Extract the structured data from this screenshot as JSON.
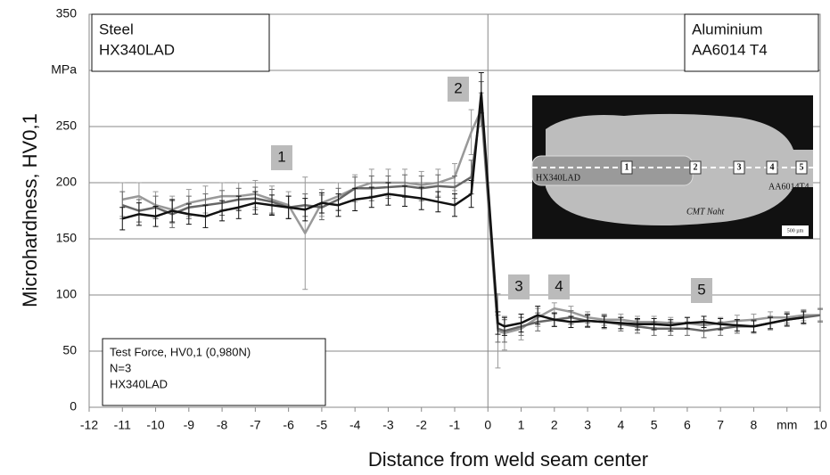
{
  "chart_data": {
    "type": "line",
    "x_label": "Distance from weld seam center",
    "y_label": "Microhardness, HV0,1",
    "xlim": [
      -12,
      10
    ],
    "ylim": [
      0,
      350
    ],
    "xticks": [
      -12,
      -11,
      -10,
      -9,
      -8,
      -7,
      -6,
      -5,
      -4,
      -3,
      -2,
      -1,
      0,
      1,
      2,
      3,
      4,
      5,
      6,
      7,
      8,
      {
        "value": 9,
        "label": "mm"
      },
      10
    ],
    "yticks": [
      0,
      50,
      100,
      150,
      200,
      250,
      {
        "value": 300,
        "label": "MPa"
      },
      350
    ],
    "grid": true,
    "x": [
      -11,
      -10.5,
      -10,
      -9.5,
      -9,
      -8.5,
      -8,
      -7.5,
      -7,
      -6.5,
      -6,
      -5.5,
      -5,
      -4.5,
      -4,
      -3.5,
      -3,
      -2.5,
      -2,
      -1.5,
      -1,
      -0.5,
      -0.2,
      0.3,
      0.5,
      1,
      1.5,
      2,
      2.5,
      3,
      3.5,
      4,
      4.5,
      5,
      5.5,
      6,
      6.5,
      7,
      7.5,
      8,
      8.5,
      9,
      9.5,
      10
    ],
    "series": [
      {
        "color": "#111111",
        "values": [
          168,
          172,
          170,
          175,
          172,
          170,
          175,
          178,
          182,
          180,
          178,
          176,
          182,
          180,
          185,
          187,
          190,
          188,
          186,
          183,
          180,
          190,
          280,
          75,
          72,
          75,
          82,
          78,
          76,
          77,
          76,
          75,
          74,
          74,
          73,
          75,
          76,
          74,
          73,
          72,
          75,
          78,
          80,
          null
        ],
        "errors": [
          10,
          10,
          9,
          10,
          9,
          10,
          9,
          10,
          10,
          9,
          10,
          10,
          9,
          10,
          10,
          9,
          10,
          9,
          10,
          9,
          10,
          12,
          18,
          10,
          8,
          8,
          8,
          6,
          5,
          5,
          5,
          5,
          5,
          5,
          5,
          5,
          5,
          5,
          5,
          5,
          5,
          5,
          5,
          null
        ]
      },
      {
        "color": "#666666",
        "values": [
          180,
          175,
          178,
          172,
          178,
          180,
          182,
          185,
          186,
          183,
          178,
          180,
          178,
          185,
          195,
          195,
          196,
          197,
          195,
          197,
          196,
          205,
          270,
          70,
          68,
          72,
          76,
          78,
          80,
          77,
          76,
          74,
          72,
          70,
          70,
          70,
          68,
          70,
          72,
          72,
          75,
          78,
          80,
          82
        ],
        "errors": [
          12,
          10,
          10,
          12,
          10,
          10,
          11,
          10,
          10,
          11,
          10,
          10,
          11,
          10,
          10,
          11,
          10,
          10,
          11,
          10,
          10,
          15,
          20,
          12,
          10,
          8,
          8,
          6,
          6,
          6,
          6,
          6,
          6,
          6,
          6,
          6,
          6,
          6,
          6,
          6,
          6,
          6,
          6,
          6
        ]
      },
      {
        "color": "#999999",
        "values": [
          185,
          188,
          180,
          176,
          182,
          185,
          188,
          188,
          190,
          185,
          180,
          155,
          182,
          188,
          195,
          200,
          200,
          200,
          198,
          200,
          205,
          245,
          265,
          68,
          66,
          70,
          80,
          88,
          85,
          80,
          78,
          78,
          76,
          76,
          75,
          75,
          73,
          75,
          77,
          78,
          80,
          80,
          82,
          82
        ],
        "errors": [
          15,
          12,
          12,
          12,
          12,
          12,
          12,
          12,
          12,
          12,
          12,
          50,
          12,
          12,
          12,
          12,
          12,
          12,
          12,
          12,
          12,
          20,
          15,
          33,
          15,
          10,
          8,
          5,
          5,
          5,
          5,
          5,
          5,
          5,
          5,
          5,
          5,
          5,
          5,
          5,
          5,
          5,
          5,
          5
        ]
      }
    ],
    "annotations": [
      "1",
      "2",
      "3",
      "4",
      "5"
    ],
    "boxes": [
      [
        "Steel",
        "HX340LAD"
      ],
      [
        "Aluminium",
        "AA6014 T4"
      ],
      [
        "Test Force, HV0,1 (0,980N)",
        "N=3",
        "HX340LAD"
      ]
    ],
    "inset_labels": [
      "1",
      "2",
      "3",
      "4",
      "5",
      "HX340LAD",
      "AA6014T4",
      "CMT Naht",
      "500 µm"
    ]
  }
}
